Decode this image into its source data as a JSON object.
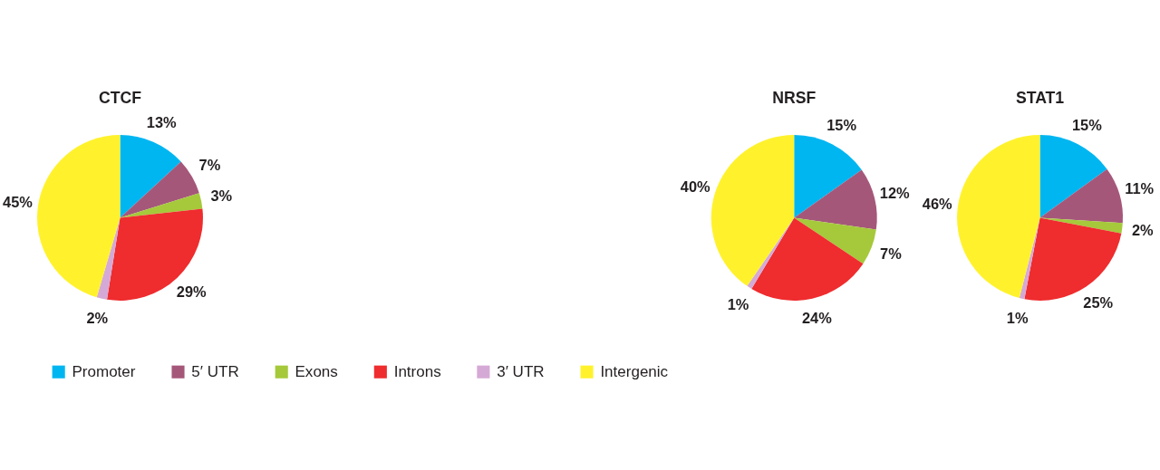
{
  "chart_data": [
    {
      "type": "pie",
      "title": "CTCF",
      "categories": [
        "Promoter",
        "5′ UTR",
        "Exons",
        "Introns",
        "3′ UTR",
        "Intergenic"
      ],
      "values": [
        13,
        7,
        3,
        29,
        2,
        45
      ],
      "value_labels": [
        "13%",
        "7%",
        "3%",
        "29%",
        "2%",
        "45%"
      ],
      "colors": [
        "#00b6f1",
        "#a5577a",
        "#a5c93a",
        "#ef2c2e",
        "#d5a9d6",
        "#fff22d"
      ],
      "legend": "bottom"
    },
    {
      "type": "pie",
      "title": "NRSF",
      "categories": [
        null,
        null,
        null,
        null,
        null,
        null
      ],
      "values": [
        15,
        12,
        7,
        24,
        1,
        40
      ],
      "value_labels": [
        "15%",
        "12%",
        "7%",
        "24%",
        "1%",
        "40%"
      ],
      "colors": [
        "#00b6f1",
        "#a5577a",
        "#a5c93a",
        "#ef2c2e",
        "#d5a9d6",
        "#fff22d"
      ]
    },
    {
      "type": "pie",
      "title": "STAT1",
      "categories": [
        null,
        null,
        null,
        null,
        null,
        null
      ],
      "values": [
        15,
        11,
        2,
        25,
        1,
        46
      ],
      "value_labels": [
        "15%",
        "11%",
        "2%",
        "25%",
        "1%",
        "46%"
      ],
      "colors": [
        "#00b6f1",
        "#a5577a",
        "#a5c93a",
        "#ef2c2e",
        "#d5a9d6",
        "#fff22d"
      ]
    }
  ]
}
